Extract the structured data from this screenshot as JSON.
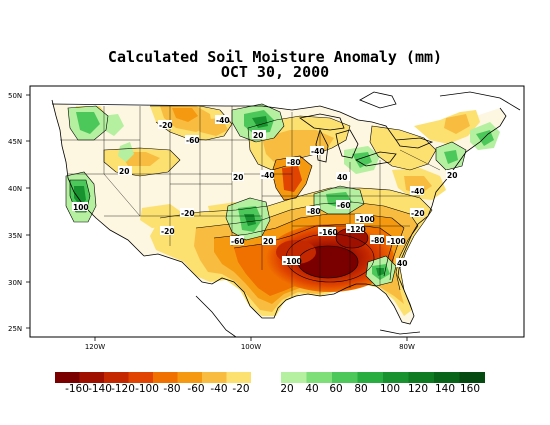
{
  "title": "Calculated Soil Moisture Anomaly (mm)",
  "date": "OCT 30, 2000",
  "lat_labels": [
    "50N",
    "45N",
    "40N",
    "35N",
    "30N",
    "25N"
  ],
  "lon_labels": [
    "120W",
    "100W",
    "80W"
  ],
  "contour_labels": [
    "-20",
    "-40",
    "-60",
    "-80",
    "-100",
    "-120",
    "-140",
    "-160",
    "20",
    "40",
    "60",
    "100"
  ],
  "legend": {
    "negative_labels": [
      "-160",
      "-140",
      "-120",
      "-100",
      "-80",
      "-60",
      "-40",
      "-20"
    ],
    "positive_labels": [
      "20",
      "40",
      "60",
      "80",
      "100",
      "120",
      "140",
      "160"
    ],
    "negative_colors": [
      "#7a0000",
      "#a01000",
      "#c42800",
      "#e04400",
      "#f07000",
      "#f59a10",
      "#f8bd40",
      "#fce070"
    ],
    "positive_colors": [
      "#b4f0a0",
      "#7ede78",
      "#4cc85a",
      "#28ae40",
      "#18922e",
      "#0e7a22",
      "#086418",
      "#054a10"
    ],
    "neutral_color": "#ffffff"
  }
}
